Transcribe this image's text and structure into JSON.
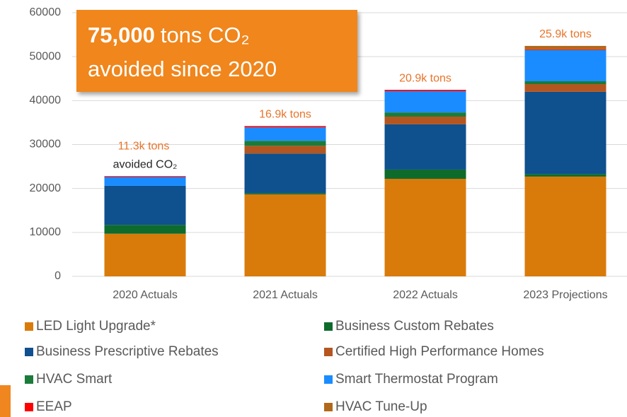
{
  "chart_data": {
    "type": "stacked_bar",
    "categories": [
      "2020 Actuals",
      "2021 Actuals",
      "2022 Actuals",
      "2023 Projections"
    ],
    "series": [
      {
        "name": "LED Light Upgrade*",
        "color": "#d97b0b",
        "values": [
          9700,
          18650,
          22200,
          22700
        ]
      },
      {
        "name": "Business Custom Rebates",
        "color": "#0e6b2c",
        "values": [
          2000,
          300,
          2100,
          600
        ]
      },
      {
        "name": "Business Prescriptive Rebates",
        "color": "#0f508e",
        "values": [
          8900,
          9000,
          10300,
          18700
        ]
      },
      {
        "name": "Certified High Performance Homes",
        "color": "#b4561f",
        "values": [
          0,
          1750,
          1750,
          1750
        ]
      },
      {
        "name": "HVAC Smart",
        "color": "#1b7b3a",
        "values": [
          0,
          1150,
          950,
          650
        ]
      },
      {
        "name": "Smart Thermostat Program",
        "color": "#1a8cff",
        "values": [
          2000,
          3050,
          4850,
          7100
        ]
      },
      {
        "name": "EEAP",
        "color": "#ff0000",
        "values": [
          200,
          300,
          300,
          150
        ]
      },
      {
        "name": "HVAC Tune-Up",
        "color": "#b0691b",
        "values": [
          0,
          0,
          0,
          800
        ]
      }
    ],
    "ylim": [
      0,
      60000
    ],
    "yticks": [
      0,
      10000,
      20000,
      30000,
      40000,
      50000,
      60000
    ],
    "grid": true,
    "bar_labels": [
      "11.3k tons",
      "16.9k tons",
      "20.9k tons",
      "25.9k tons"
    ],
    "bar_label_note": "avoided CO₂",
    "callout": {
      "highlight": "75,000",
      "line1": "tons CO₂",
      "line2": "avoided since 2020"
    }
  }
}
